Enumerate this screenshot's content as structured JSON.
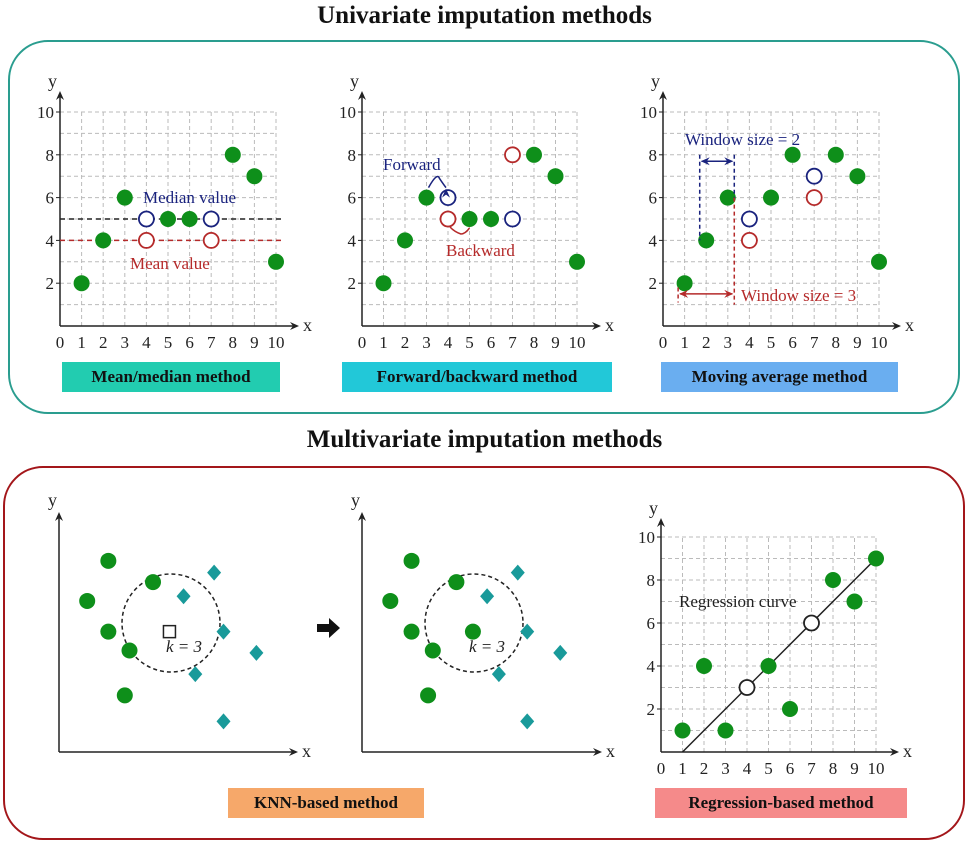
{
  "sections": {
    "univariate_title": "Univariate imputation methods",
    "multivariate_title": "Multivariate imputation methods"
  },
  "colors": {
    "univariate_border": "#2a9d8f",
    "multivariate_border": "#a3161a",
    "observed": "#0e8f1a",
    "imputed_blue": "#1a237e",
    "imputed_red": "#b52a2a",
    "diamond": "#199a9a"
  },
  "badges": {
    "mean_median": {
      "label": "Mean/median method",
      "color": "#22ccb0"
    },
    "forward_backward": {
      "label": "Forward/backward method",
      "color": "#22c8d8"
    },
    "moving_average": {
      "label": "Moving average method",
      "color": "#6aaef0"
    },
    "knn": {
      "label": "KNN-based method",
      "color": "#f6a86a"
    },
    "regression": {
      "label": "Regression-based method",
      "color": "#f58a8a"
    }
  },
  "chart_data": [
    {
      "id": "mean_median",
      "type": "scatter",
      "xlabel": "x",
      "ylabel": "y",
      "xlim": [
        0,
        10
      ],
      "ylim": [
        0,
        10
      ],
      "xticks": [
        "0",
        "1",
        "2",
        "3",
        "4",
        "5",
        "6",
        "7",
        "8",
        "9",
        "10"
      ],
      "yticks": [
        "2",
        "4",
        "6",
        "8",
        "10"
      ],
      "grid": true,
      "observed": [
        [
          1,
          2
        ],
        [
          2,
          4
        ],
        [
          3,
          6
        ],
        [
          5,
          5
        ],
        [
          6,
          5
        ],
        [
          8,
          8
        ],
        [
          9,
          7
        ],
        [
          10,
          3
        ]
      ],
      "imputed_blue": [
        [
          4,
          5
        ],
        [
          7,
          5
        ]
      ],
      "imputed_red": [
        [
          4,
          4
        ],
        [
          7,
          4
        ]
      ],
      "hlines": [
        {
          "y": 5,
          "color": "blue",
          "label": "Median value"
        },
        {
          "y": 4,
          "color": "red",
          "label": "Mean value"
        }
      ],
      "annotations": {
        "median": "Median value",
        "mean": "Mean value"
      }
    },
    {
      "id": "forward_backward",
      "type": "scatter",
      "xlabel": "x",
      "ylabel": "y",
      "xlim": [
        0,
        10
      ],
      "ylim": [
        0,
        10
      ],
      "xticks": [
        "0",
        "1",
        "2",
        "3",
        "4",
        "5",
        "6",
        "7",
        "8",
        "9",
        "10"
      ],
      "yticks": [
        "2",
        "4",
        "6",
        "8",
        "10"
      ],
      "grid": true,
      "observed": [
        [
          1,
          2
        ],
        [
          2,
          4
        ],
        [
          3,
          6
        ],
        [
          5,
          5
        ],
        [
          6,
          5
        ],
        [
          8,
          8
        ],
        [
          9,
          7
        ],
        [
          10,
          3
        ]
      ],
      "imputed_blue": [
        [
          4,
          6
        ],
        [
          7,
          5
        ]
      ],
      "imputed_red": [
        [
          4,
          5
        ],
        [
          7,
          8
        ]
      ],
      "annotations": {
        "forward": "Forward",
        "backward": "Backward"
      }
    },
    {
      "id": "moving_average",
      "type": "scatter",
      "xlabel": "x",
      "ylabel": "y",
      "xlim": [
        0,
        10
      ],
      "ylim": [
        0,
        10
      ],
      "xticks": [
        "0",
        "1",
        "2",
        "3",
        "4",
        "5",
        "6",
        "7",
        "8",
        "9",
        "10"
      ],
      "yticks": [
        "2",
        "4",
        "6",
        "8",
        "10"
      ],
      "grid": true,
      "observed": [
        [
          1,
          2
        ],
        [
          2,
          4
        ],
        [
          3,
          6
        ],
        [
          5,
          6
        ],
        [
          6,
          8
        ],
        [
          8,
          8
        ],
        [
          9,
          7
        ],
        [
          10,
          3
        ]
      ],
      "imputed_blue": [
        [
          4,
          5
        ],
        [
          7,
          7
        ]
      ],
      "imputed_red": [
        [
          4,
          4
        ],
        [
          7,
          6
        ]
      ],
      "annotations": {
        "window2": "Window size = 2",
        "window3": "Window size = 3"
      }
    },
    {
      "id": "knn_before",
      "type": "scatter",
      "xlabel": "x",
      "ylabel": "y",
      "circles": [
        [
          2.1,
          8.1
        ],
        [
          1.2,
          6.4
        ],
        [
          2.1,
          5.1
        ],
        [
          4.0,
          7.2
        ],
        [
          3.0,
          4.3
        ],
        [
          2.8,
          2.4
        ]
      ],
      "diamonds": [
        [
          6.6,
          7.6
        ],
        [
          5.3,
          6.6
        ],
        [
          7.0,
          5.1
        ],
        [
          8.4,
          4.2
        ],
        [
          5.8,
          3.3
        ],
        [
          7.0,
          1.3
        ]
      ],
      "missing": [
        [
          4.7,
          5.1
        ]
      ],
      "neighborhood_label": "k = 3"
    },
    {
      "id": "knn_after",
      "type": "scatter",
      "xlabel": "x",
      "ylabel": "y",
      "circles": [
        [
          2.1,
          8.1
        ],
        [
          1.2,
          6.4
        ],
        [
          2.1,
          5.1
        ],
        [
          4.0,
          7.2
        ],
        [
          3.0,
          4.3
        ],
        [
          2.8,
          2.4
        ],
        [
          4.7,
          5.1
        ]
      ],
      "diamonds": [
        [
          6.6,
          7.6
        ],
        [
          5.3,
          6.6
        ],
        [
          7.0,
          5.1
        ],
        [
          8.4,
          4.2
        ],
        [
          5.8,
          3.3
        ],
        [
          7.0,
          1.3
        ]
      ],
      "neighborhood_label": "k = 3"
    },
    {
      "id": "regression",
      "type": "scatter",
      "xlabel": "x",
      "ylabel": "y",
      "xlim": [
        0,
        10
      ],
      "ylim": [
        0,
        10
      ],
      "xticks": [
        "0",
        "1",
        "2",
        "3",
        "4",
        "5",
        "6",
        "7",
        "8",
        "9",
        "10"
      ],
      "yticks": [
        "2",
        "4",
        "6",
        "8",
        "10"
      ],
      "grid": true,
      "observed": [
        [
          1,
          1
        ],
        [
          2,
          4
        ],
        [
          3,
          1
        ],
        [
          5,
          4
        ],
        [
          6,
          2
        ],
        [
          8,
          8
        ],
        [
          9,
          7
        ],
        [
          10,
          9
        ]
      ],
      "imputed": [
        [
          4,
          3
        ],
        [
          7,
          6
        ]
      ],
      "regression_line": {
        "from": [
          1,
          0
        ],
        "to": [
          10,
          9
        ]
      },
      "annotations": {
        "curve": "Regression curve"
      }
    }
  ]
}
